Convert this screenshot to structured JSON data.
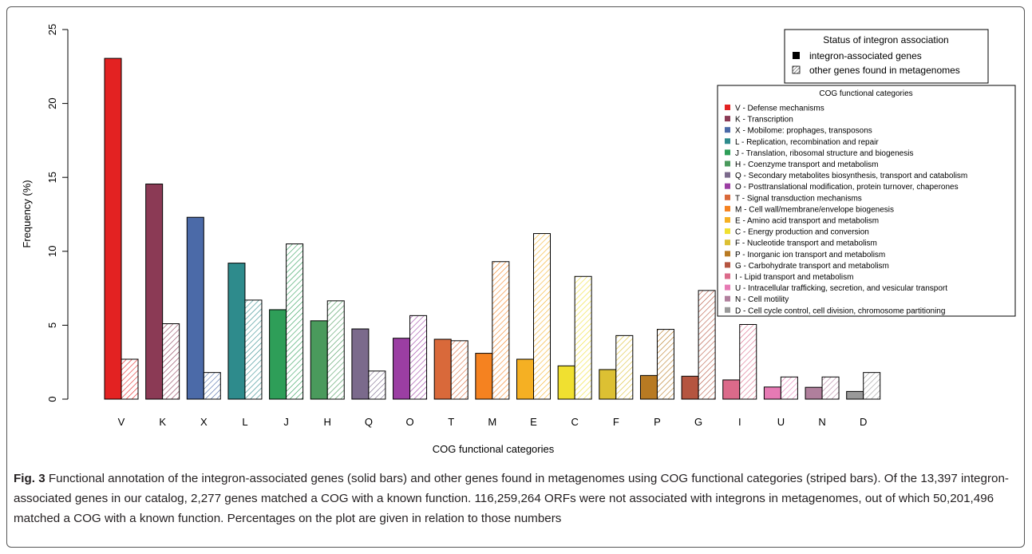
{
  "chart_data": {
    "type": "bar",
    "xlabel": "COG functional categories",
    "ylabel": "Frequency (%)",
    "ylim": [
      0,
      25
    ],
    "yticks": [
      "0",
      "5",
      "10",
      "15",
      "20",
      "25"
    ],
    "categories": [
      "V",
      "K",
      "X",
      "L",
      "J",
      "H",
      "Q",
      "O",
      "T",
      "M",
      "E",
      "C",
      "F",
      "P",
      "G",
      "I",
      "U",
      "N",
      "D"
    ],
    "colors": [
      "#e32222",
      "#8b3a55",
      "#4b6aa8",
      "#2e8b8c",
      "#2e9e58",
      "#4a9a5c",
      "#7b6a8c",
      "#9b3ea3",
      "#d9693a",
      "#f58220",
      "#f5b023",
      "#f0e030",
      "#dcc033",
      "#b87a22",
      "#b55540",
      "#db6a8a",
      "#e67ab4",
      "#b07f9c",
      "#999999"
    ],
    "series": [
      {
        "name": "integron-associated genes",
        "pattern": "solid",
        "values": [
          23.05,
          14.55,
          12.3,
          9.2,
          6.05,
          5.3,
          4.75,
          4.12,
          4.05,
          3.1,
          2.7,
          2.25,
          2.0,
          1.6,
          1.55,
          1.3,
          0.82,
          0.8,
          0.52
        ]
      },
      {
        "name": "other genes found in metagenomes",
        "pattern": "hatched",
        "values": [
          2.7,
          5.1,
          1.8,
          6.7,
          10.5,
          6.65,
          1.9,
          5.65,
          3.95,
          9.3,
          11.2,
          8.3,
          4.3,
          4.72,
          7.35,
          5.05,
          1.5,
          1.5,
          1.8
        ]
      }
    ],
    "legend_status": {
      "title": "Status of integron association",
      "items": [
        "integron-associated genes",
        "other genes found in metagenomes"
      ],
      "placement": "top-right"
    },
    "legend_cog": {
      "title": "COG functional categories",
      "placement": "right",
      "items": [
        "V - Defense mechanisms",
        "K - Transcription",
        "X - Mobilome: prophages, transposons",
        "L - Replication, recombination and repair",
        "J - Translation, ribosomal structure and biogenesis",
        "H - Coenzyme transport and metabolism",
        "Q - Secondary metabolites biosynthesis, transport and catabolism",
        "O - Posttranslational modification, protein turnover, chaperones",
        "T - Signal transduction mechanisms",
        "M - Cell wall/membrane/envelope biogenesis",
        "E - Amino acid transport and metabolism",
        "C - Energy production and conversion",
        "F - Nucleotide transport and metabolism",
        "P - Inorganic ion transport and metabolism",
        "G - Carbohydrate transport and metabolism",
        "I - Lipid transport and metabolism",
        "U - Intracellular trafficking, secretion, and vesicular transport",
        "N - Cell motility",
        "D - Cell cycle control, cell division, chromosome partitioning"
      ]
    }
  },
  "caption": {
    "label": "Fig. 3",
    "text": " Functional annotation of the integron-associated genes (solid bars) and other genes found in metagenomes using COG functional categories (striped bars). Of the 13,397 integron-associated genes in our catalog, 2,277 genes matched a COG with a known function. 116,259,264 ORFs were not associated with integrons in metagenomes, out of which 50,201,496 matched a COG with a known function. Percentages on the plot are given in relation to those numbers"
  }
}
